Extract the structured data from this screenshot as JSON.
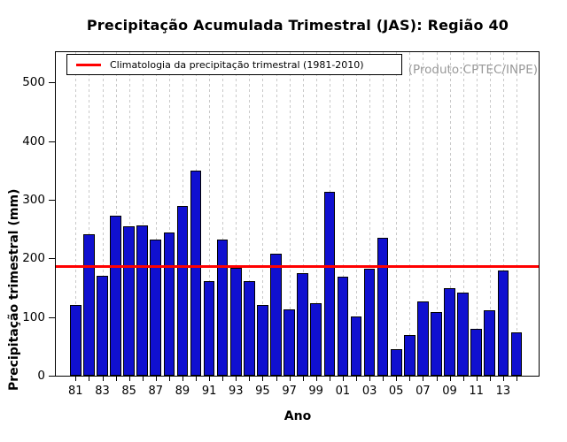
{
  "title": "Precipitação Acumulada Trimestral (JAS): Região 40",
  "watermark": "(Produto:CPTEC/INPE)",
  "legend": {
    "label": "Climatologia da precipitação trimestral (1981-2010)",
    "line_color": "#ff0000"
  },
  "colors": {
    "bar_fill": "#1010d0",
    "bar_border": "#000000",
    "climatology_line": "#ff0000",
    "gridline": "#c9c9c9",
    "watermark_text": "#999999"
  },
  "chart_data": {
    "type": "bar",
    "title": "Precipitação Acumulada Trimestral (JAS): Região 40",
    "xlabel": "Ano",
    "ylabel": "Precipitação trimestral (mm)",
    "ylim": [
      0,
      550
    ],
    "yticks": [
      0,
      100,
      200,
      300,
      400,
      500
    ],
    "grid": "vertical-dashed-per-year",
    "legend_position": "top-left-inside",
    "categories": [
      "81",
      "82",
      "83",
      "84",
      "85",
      "86",
      "87",
      "88",
      "89",
      "90",
      "91",
      "92",
      "93",
      "94",
      "95",
      "96",
      "97",
      "98",
      "99",
      "00",
      "01",
      "02",
      "03",
      "04",
      "05",
      "06",
      "07",
      "08",
      "09",
      "10",
      "11",
      "12",
      "13",
      "14"
    ],
    "xtick_labels_shown": [
      "81",
      "83",
      "85",
      "87",
      "89",
      "91",
      "93",
      "95",
      "97",
      "99",
      "01",
      "03",
      "05",
      "07",
      "09",
      "11",
      "13"
    ],
    "values": [
      120,
      241,
      170,
      273,
      255,
      257,
      232,
      245,
      289,
      350,
      162,
      232,
      184,
      162,
      121,
      208,
      113,
      175,
      124,
      313,
      169,
      101,
      183,
      235,
      46,
      69,
      127,
      108,
      150,
      142,
      80,
      112,
      180,
      74
    ],
    "climatology_value": 186
  }
}
